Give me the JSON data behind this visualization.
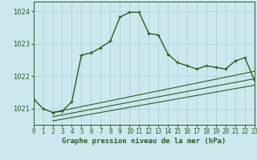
{
  "title": "Graphe pression niveau de la mer (hPa)",
  "background_color": "#cce8ee",
  "grid_color": "#aacdd6",
  "line_color": "#2d5a27",
  "x_min": 0,
  "x_max": 23,
  "y_min": 1020.5,
  "y_max": 1024.3,
  "yticks": [
    1021,
    1022,
    1023,
    1024
  ],
  "xticks": [
    0,
    1,
    2,
    3,
    4,
    5,
    6,
    7,
    8,
    9,
    10,
    11,
    12,
    13,
    14,
    15,
    16,
    17,
    18,
    19,
    20,
    21,
    22,
    23
  ],
  "main_series_x": [
    0,
    1,
    2,
    3,
    4,
    5,
    6,
    7,
    8,
    9,
    10,
    11,
    12,
    13,
    14,
    15,
    16,
    17,
    18,
    19,
    20,
    21,
    22,
    23
  ],
  "main_series_y": [
    1021.3,
    1021.0,
    1020.88,
    1020.92,
    1021.22,
    1022.65,
    1022.72,
    1022.88,
    1023.08,
    1023.82,
    1023.97,
    1023.97,
    1023.32,
    1023.27,
    1022.68,
    1022.42,
    1022.32,
    1022.22,
    1022.32,
    1022.27,
    1022.22,
    1022.47,
    1022.57,
    1021.88
  ],
  "trend1_x": [
    2,
    23
  ],
  "trend1_y": [
    1020.88,
    1022.15
  ],
  "trend2_x": [
    2,
    23
  ],
  "trend2_y": [
    1020.75,
    1021.92
  ],
  "trend3_x": [
    2,
    23
  ],
  "trend3_y": [
    1020.62,
    1021.72
  ]
}
